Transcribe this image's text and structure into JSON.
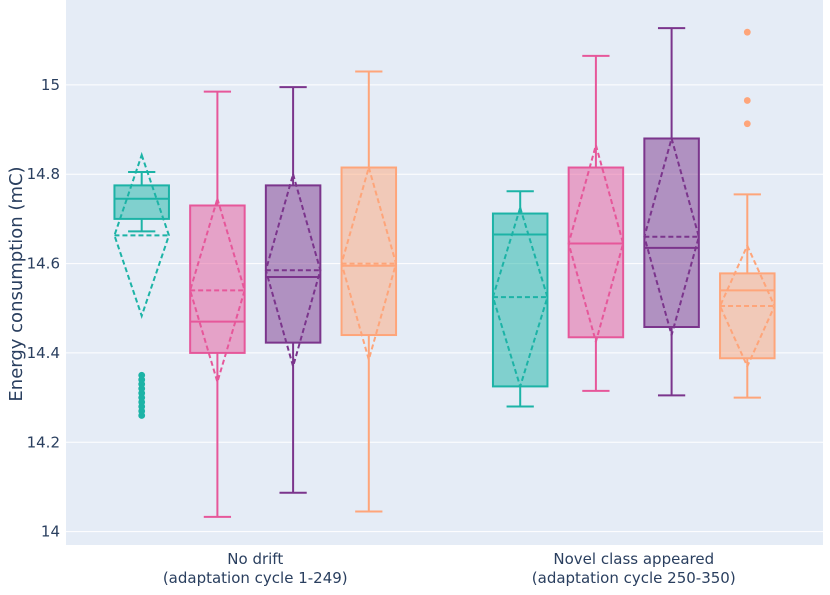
{
  "chart_data": {
    "type": "box",
    "title": "",
    "ylabel": "Energy consumption (mC)",
    "xlabel": "",
    "ylim": [
      13.97,
      15.19
    ],
    "yticks": [
      14,
      14.2,
      14.4,
      14.6,
      14.8,
      15
    ],
    "ytick_labels": [
      "14",
      "14.2",
      "14.4",
      "14.6",
      "14.8",
      "15"
    ],
    "grid": true,
    "legend": "none",
    "background": "#e5ecf6",
    "categories": [
      {
        "line1": "No drift",
        "line2": "(adaptation cycle 1-249)"
      },
      {
        "line1": "Novel class appeared",
        "line2": "(adaptation cycle 250-350)"
      }
    ],
    "series": [
      {
        "color": "#1cb3a6",
        "boxes": [
          {
            "lowerfence": 14.672,
            "q1": 14.7,
            "median": 14.745,
            "q3": 14.775,
            "upperfence": 14.805,
            "mean": 14.663,
            "sd": 0.18,
            "outliers": [
              14.26,
              14.27,
              14.28,
              14.29,
              14.3,
              14.31,
              14.32,
              14.33,
              14.34,
              14.35
            ]
          },
          {
            "lowerfence": 14.28,
            "q1": 14.325,
            "median": 14.665,
            "q3": 14.712,
            "upperfence": 14.762,
            "mean": 14.525,
            "sd": 0.2,
            "outliers": []
          }
        ]
      },
      {
        "color": "#e6579a",
        "boxes": [
          {
            "lowerfence": 14.033,
            "q1": 14.4,
            "median": 14.47,
            "q3": 14.73,
            "upperfence": 14.985,
            "mean": 14.54,
            "sd": 0.205,
            "outliers": []
          },
          {
            "lowerfence": 14.315,
            "q1": 14.435,
            "median": 14.645,
            "q3": 14.815,
            "upperfence": 15.065,
            "mean": 14.645,
            "sd": 0.22,
            "outliers": []
          }
        ]
      },
      {
        "color": "#7b358c",
        "boxes": [
          {
            "lowerfence": 14.087,
            "q1": 14.423,
            "median": 14.57,
            "q3": 14.775,
            "upperfence": 14.995,
            "mean": 14.585,
            "sd": 0.215,
            "outliers": []
          },
          {
            "lowerfence": 14.305,
            "q1": 14.458,
            "median": 14.635,
            "q3": 14.88,
            "upperfence": 15.127,
            "mean": 14.66,
            "sd": 0.22,
            "outliers": []
          }
        ]
      },
      {
        "color": "#fea57a",
        "boxes": [
          {
            "lowerfence": 14.045,
            "q1": 14.44,
            "median": 14.595,
            "q3": 14.815,
            "upperfence": 15.03,
            "mean": 14.6,
            "sd": 0.215,
            "outliers": []
          },
          {
            "lowerfence": 14.3,
            "q1": 14.388,
            "median": 14.54,
            "q3": 14.578,
            "upperfence": 14.755,
            "mean": 14.505,
            "sd": 0.135,
            "outliers": [
              14.913,
              14.965,
              15.118
            ]
          }
        ]
      }
    ]
  }
}
